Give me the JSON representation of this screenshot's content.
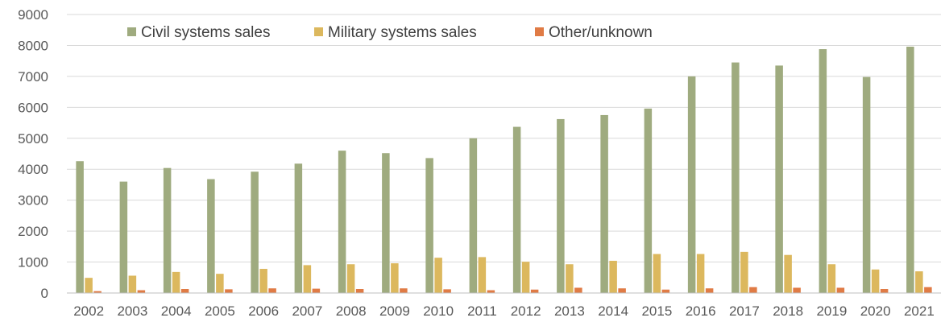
{
  "chart_data": {
    "type": "bar",
    "title": "",
    "xlabel": "",
    "ylabel": "",
    "ylim": [
      0,
      9000
    ],
    "y_ticks": [
      0,
      1000,
      2000,
      3000,
      4000,
      5000,
      6000,
      7000,
      8000,
      9000
    ],
    "grid": true,
    "legend_position": "top-left",
    "categories": [
      "2002",
      "2003",
      "2004",
      "2005",
      "2006",
      "2007",
      "2008",
      "2009",
      "2010",
      "2011",
      "2012",
      "2013",
      "2014",
      "2015",
      "2016",
      "2017",
      "2018",
      "2019",
      "2020",
      "2021"
    ],
    "series": [
      {
        "name": "Civil systems sales",
        "color": "#9fab7f",
        "values": [
          4260,
          3600,
          4040,
          3680,
          3920,
          4180,
          4600,
          4520,
          4360,
          5000,
          5370,
          5620,
          5750,
          5960,
          7000,
          7450,
          7350,
          7880,
          6980,
          7960
        ]
      },
      {
        "name": "Military systems sales",
        "color": "#dcb85e",
        "values": [
          490,
          560,
          680,
          620,
          780,
          900,
          930,
          960,
          1140,
          1160,
          1010,
          930,
          1040,
          1260,
          1260,
          1330,
          1230,
          930,
          760,
          700
        ]
      },
      {
        "name": "Other/unknown",
        "color": "#e07b45",
        "values": [
          60,
          90,
          130,
          120,
          150,
          140,
          130,
          150,
          120,
          90,
          110,
          170,
          150,
          110,
          150,
          190,
          170,
          170,
          130,
          190
        ]
      }
    ]
  }
}
